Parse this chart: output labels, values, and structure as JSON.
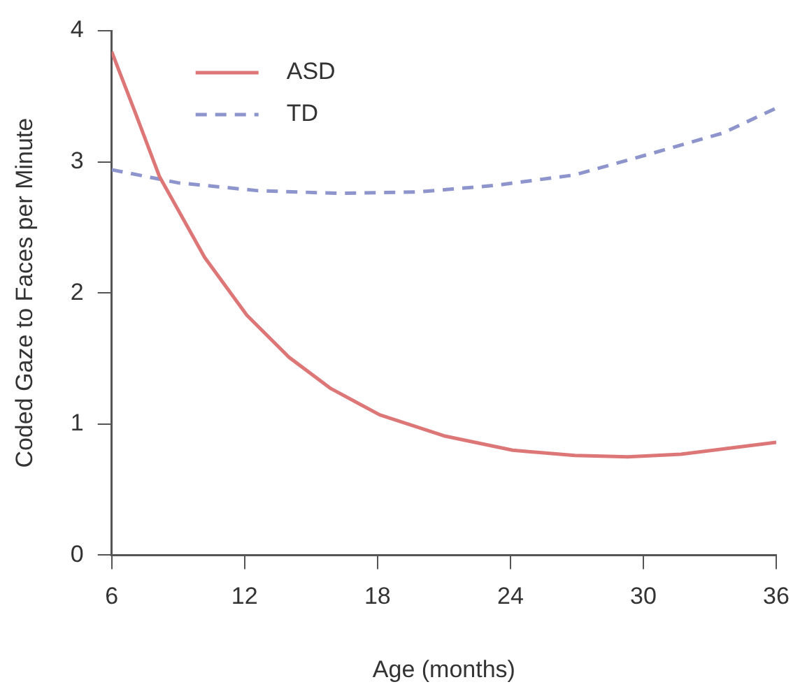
{
  "chart_data": {
    "type": "line",
    "xlabel": "Age (months)",
    "ylabel": "Coded Gaze to Faces per Minute",
    "xlim": [
      6,
      36
    ],
    "xticks": [
      6,
      12,
      18,
      24,
      30,
      36
    ],
    "ylim": [
      0,
      4
    ],
    "yticks": [
      0,
      1,
      2,
      3,
      4
    ],
    "grid": false,
    "legend": "top left",
    "marker": "none",
    "series": [
      {
        "name": "ASD",
        "color": "#dd7777",
        "line_style": "solid",
        "x": [
          6,
          7.1,
          8.15,
          10.2,
          12.1,
          14,
          15.9,
          18.1,
          21,
          24.1,
          26.9,
          29.3,
          31.7,
          34.1,
          36
        ],
        "values": [
          3.84,
          3.36,
          2.89,
          2.27,
          1.83,
          1.51,
          1.27,
          1.07,
          0.91,
          0.8,
          0.76,
          0.75,
          0.77,
          0.82,
          0.86
        ]
      },
      {
        "name": "TD",
        "color": "#8d95cc",
        "line_style": "dashed",
        "x": [
          6,
          9,
          12.6,
          16.2,
          19.8,
          23.3,
          26.9,
          30.5,
          33.6,
          36
        ],
        "values": [
          2.94,
          2.84,
          2.78,
          2.76,
          2.77,
          2.82,
          2.9,
          3.07,
          3.22,
          3.41
        ]
      }
    ]
  }
}
